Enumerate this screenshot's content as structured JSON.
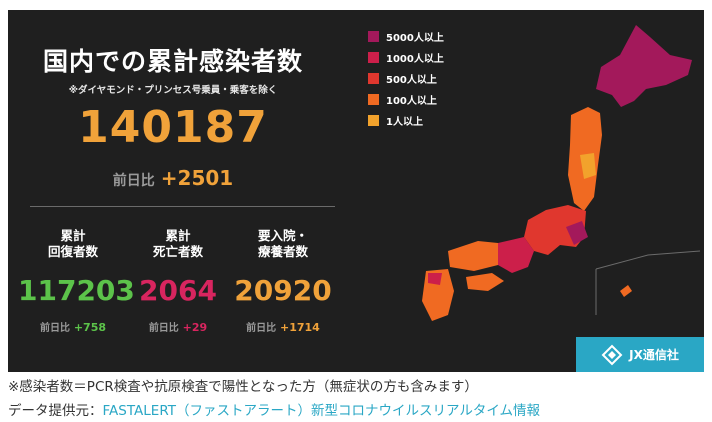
{
  "title": "国内での累計感染者数",
  "subtitle": "※ダイヤモンド・プリンセス号乗員・乗客を除く",
  "total_cases": "140187",
  "day_change": {
    "label": "前日比",
    "value": "+2501"
  },
  "stats": [
    {
      "heading_line1": "累計",
      "heading_line2": "回復者数",
      "value": "117203",
      "change_label": "前日比",
      "change": "+758",
      "color": "#5cc34a"
    },
    {
      "heading_line1": "累計",
      "heading_line2": "死亡者数",
      "value": "2064",
      "change_label": "前日比",
      "change": "+29",
      "color": "#d8255f"
    },
    {
      "heading_line1": "要入院・",
      "heading_line2": "療養者数",
      "value": "20920",
      "change_label": "前日比",
      "change": "+1714",
      "color": "#f0a23a"
    }
  ],
  "legend": [
    {
      "label": "5000人以上",
      "color": "#a3195b"
    },
    {
      "label": "1000人以上",
      "color": "#cc1f4a"
    },
    {
      "label": "500人以上",
      "color": "#e0372e"
    },
    {
      "label": "100人以上",
      "color": "#f06a22"
    },
    {
      "label": "1人以上",
      "color": "#f2a22c"
    }
  ],
  "map_icon": "japan-map",
  "logo": {
    "text": "JX通信社",
    "color": "#2aa7c5"
  },
  "footnote": "※感染者数＝PCR検査や抗原検査で陽性となった方（無症状の方も含みます）",
  "source": {
    "label": "データ提供元：",
    "link_text": "FASTALERT（ファストアラート）新型コロナウイルスリアルタイム情報"
  }
}
